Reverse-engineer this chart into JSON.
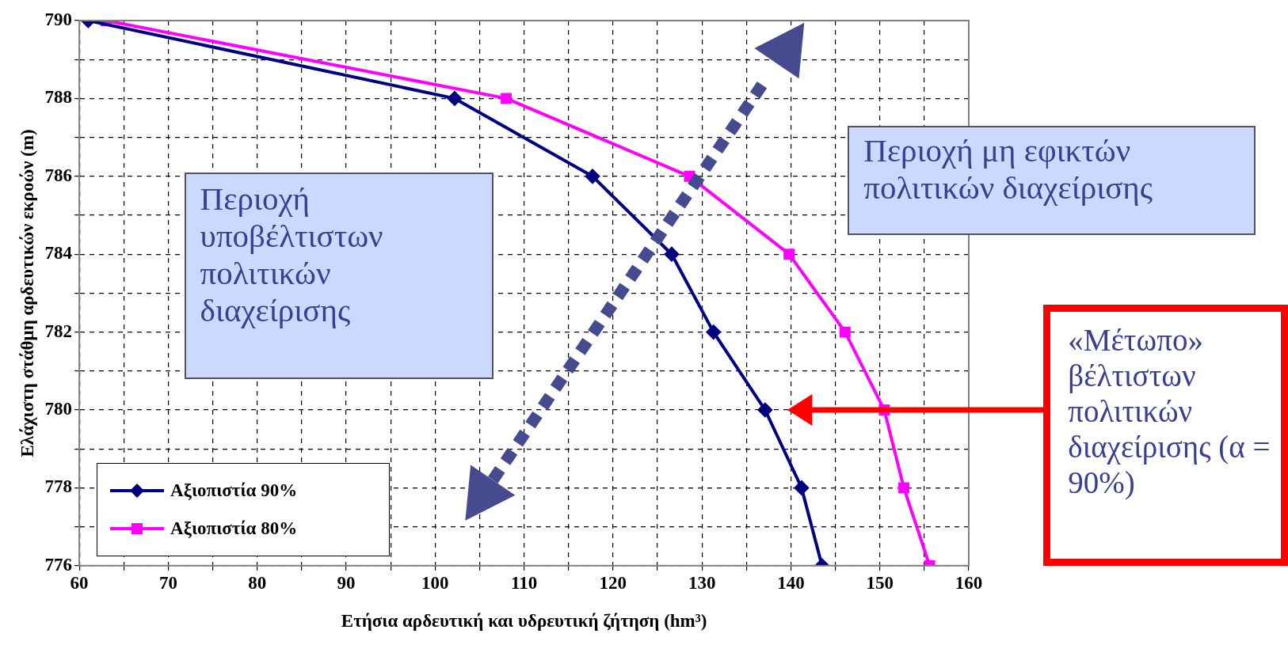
{
  "chart_data": {
    "type": "line",
    "xlabel": "Ετήσια αρδευτική και υδρευτική ζήτηση (hm³)",
    "ylabel": "Ελάχιστη στάθμη αρδευτικών εκροών (m)",
    "xlim": [
      60,
      160
    ],
    "xticks": [
      60,
      {
        "value": 65,
        "label": null
      },
      70,
      {
        "value": 75,
        "label": null
      },
      80,
      {
        "value": 85,
        "label": null
      },
      90,
      {
        "value": 95,
        "label": null
      },
      100,
      {
        "value": 105,
        "label": null
      },
      110,
      {
        "value": 115,
        "label": null
      },
      120,
      {
        "value": 125,
        "label": null
      },
      130,
      {
        "value": 135,
        "label": null
      },
      140,
      {
        "value": 145,
        "label": null
      },
      150,
      {
        "value": 155,
        "label": null
      },
      160
    ],
    "ylim": [
      776,
      790
    ],
    "yticks": [
      776,
      {
        "value": 777,
        "label": null
      },
      778,
      {
        "value": 779,
        "label": null
      },
      780,
      {
        "value": 781,
        "label": null
      },
      782,
      {
        "value": 783,
        "label": null
      },
      784,
      {
        "value": 785,
        "label": null
      },
      786,
      {
        "value": 787,
        "label": null
      },
      788,
      {
        "value": 789,
        "label": null
      },
      790
    ],
    "grid": true,
    "legend": "bottom left",
    "series": [
      {
        "name": "Αξιοπιστία 90%",
        "color": "#000080",
        "marker": "diamond",
        "x": [
          61,
          102.2,
          117.7,
          126.6,
          131.3,
          137.1,
          141.2,
          143.5
        ],
        "values": [
          790,
          788,
          786,
          784,
          782,
          780,
          778,
          776
        ]
      },
      {
        "name": "Αξιοπιστία 80%",
        "color": "#ff00ff",
        "marker": "square",
        "x": [
          63,
          108,
          128.6,
          139.8,
          146.1,
          150.5,
          152.7,
          155.6
        ],
        "values": [
          790,
          788,
          786,
          784,
          782,
          780,
          778,
          776
        ]
      }
    ],
    "annotations": [
      "Περιοχή υποβέλτιστων πολιτικών διαχείρισης",
      "Περιοχή μη εφικτών πολιτικών διαχείρισης",
      "«Μέτωπο» βέλτιστων πολιτικών διαχείρισης (α = 90%)"
    ]
  }
}
